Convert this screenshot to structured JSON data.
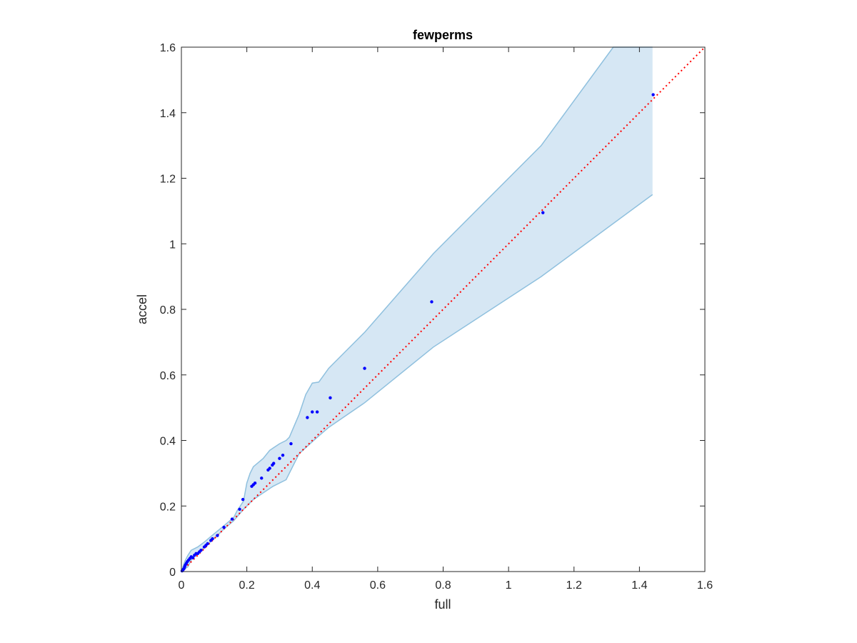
{
  "chart_data": {
    "type": "scatter",
    "title": "fewperms",
    "xlabel": "full",
    "ylabel": "accel",
    "xlim": [
      0,
      1.6
    ],
    "ylim": [
      0,
      1.6
    ],
    "xticks": [
      0,
      0.2,
      0.4,
      0.6,
      0.8,
      1,
      1.2,
      1.4,
      1.6
    ],
    "yticks": [
      0,
      0.2,
      0.4,
      0.6,
      0.8,
      1,
      1.2,
      1.4,
      1.6
    ],
    "xtick_labels": [
      "0",
      "0.2",
      "0.4",
      "0.6",
      "0.8",
      "1",
      "1.2",
      "1.4",
      "1.6"
    ],
    "ytick_labels": [
      "0",
      "0.2",
      "0.4",
      "0.6",
      "0.8",
      "1",
      "1.2",
      "1.4",
      "1.6"
    ],
    "grid": false,
    "colors": {
      "points": "#0000ff",
      "reference_line": "#ff0000",
      "band_fill": "#d6e7f4",
      "band_edge": "#8fc0de",
      "axes": "#262626"
    },
    "reference_line": {
      "style": "dotted",
      "x": [
        0,
        1.6
      ],
      "y": [
        0,
        1.6
      ]
    },
    "band": {
      "upper": [
        [
          0.0,
          0.0
        ],
        [
          0.01,
          0.03
        ],
        [
          0.02,
          0.05
        ],
        [
          0.03,
          0.065
        ],
        [
          0.05,
          0.075
        ],
        [
          0.07,
          0.09
        ],
        [
          0.1,
          0.115
        ],
        [
          0.13,
          0.14
        ],
        [
          0.16,
          0.165
        ],
        [
          0.17,
          0.185
        ],
        [
          0.19,
          0.215
        ],
        [
          0.2,
          0.27
        ],
        [
          0.21,
          0.3
        ],
        [
          0.22,
          0.32
        ],
        [
          0.25,
          0.345
        ],
        [
          0.27,
          0.37
        ],
        [
          0.3,
          0.39
        ],
        [
          0.32,
          0.4
        ],
        [
          0.33,
          0.41
        ],
        [
          0.36,
          0.48
        ],
        [
          0.38,
          0.54
        ],
        [
          0.4,
          0.575
        ],
        [
          0.42,
          0.578
        ],
        [
          0.45,
          0.62
        ],
        [
          0.5,
          0.67
        ],
        [
          0.56,
          0.73
        ],
        [
          0.77,
          0.97
        ],
        [
          1.1,
          1.3
        ],
        [
          1.32,
          1.6
        ],
        [
          1.44,
          1.6
        ]
      ],
      "lower": [
        [
          1.44,
          1.15
        ],
        [
          1.1,
          0.9
        ],
        [
          0.77,
          0.685
        ],
        [
          0.56,
          0.515
        ],
        [
          0.45,
          0.44
        ],
        [
          0.41,
          0.405
        ],
        [
          0.36,
          0.36
        ],
        [
          0.32,
          0.28
        ],
        [
          0.28,
          0.26
        ],
        [
          0.25,
          0.24
        ],
        [
          0.22,
          0.22
        ],
        [
          0.19,
          0.19
        ],
        [
          0.16,
          0.155
        ],
        [
          0.13,
          0.13
        ],
        [
          0.1,
          0.1
        ],
        [
          0.07,
          0.075
        ],
        [
          0.05,
          0.055
        ],
        [
          0.03,
          0.035
        ],
        [
          0.02,
          0.015
        ],
        [
          0.0,
          0.0
        ]
      ]
    },
    "points": {
      "x": [
        0.002,
        0.004,
        0.006,
        0.008,
        0.01,
        0.012,
        0.015,
        0.018,
        0.022,
        0.026,
        0.03,
        0.035,
        0.04,
        0.045,
        0.05,
        0.055,
        0.06,
        0.07,
        0.075,
        0.08,
        0.09,
        0.095,
        0.11,
        0.13,
        0.155,
        0.178,
        0.188,
        0.215,
        0.22,
        0.225,
        0.245,
        0.265,
        0.27,
        0.278,
        0.282,
        0.3,
        0.31,
        0.335,
        0.385,
        0.4,
        0.415,
        0.455,
        0.56,
        0.765,
        1.105,
        1.442
      ],
      "y": [
        0.002,
        0.004,
        0.007,
        0.009,
        0.015,
        0.02,
        0.025,
        0.03,
        0.035,
        0.04,
        0.045,
        0.042,
        0.05,
        0.055,
        0.055,
        0.06,
        0.065,
        0.075,
        0.08,
        0.085,
        0.095,
        0.1,
        0.11,
        0.135,
        0.16,
        0.19,
        0.22,
        0.26,
        0.265,
        0.27,
        0.285,
        0.31,
        0.315,
        0.325,
        0.33,
        0.345,
        0.355,
        0.39,
        0.47,
        0.487,
        0.487,
        0.53,
        0.62,
        0.823,
        1.095,
        1.455
      ]
    }
  }
}
